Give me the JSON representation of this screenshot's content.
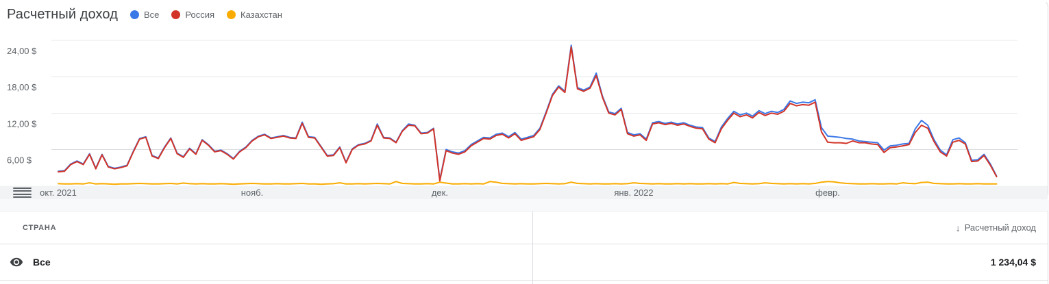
{
  "chart_data": {
    "type": "line",
    "title": "Расчетный доход",
    "unit": "$",
    "ylim": [
      0,
      24
    ],
    "grid": true,
    "legend_position": "top",
    "y_ticks": [
      {
        "label": "24,00 $",
        "value": 24
      },
      {
        "label": "18,00 $",
        "value": 18
      },
      {
        "label": "12,00 $",
        "value": 12
      },
      {
        "label": "6,00 $",
        "value": 6
      }
    ],
    "x_ticks": [
      {
        "label": "окт. 2021",
        "day": 0
      },
      {
        "label": "нояб.",
        "day": 31
      },
      {
        "label": "дек.",
        "day": 61
      },
      {
        "label": "янв. 2022",
        "day": 92
      },
      {
        "label": "февр.",
        "day": 123
      }
    ],
    "draw_order": [
      2,
      0,
      1
    ],
    "series": [
      {
        "name": "Все",
        "color": "#3b78e7",
        "values": [
          2.4,
          2.5,
          3.6,
          4.1,
          3.6,
          5.3,
          2.9,
          5.2,
          3.2,
          2.9,
          3.1,
          3.4,
          5.7,
          7.8,
          8.1,
          5.0,
          4.6,
          6.4,
          7.9,
          5.4,
          4.8,
          6.2,
          5.3,
          7.6,
          6.8,
          5.7,
          5.9,
          5.3,
          4.5,
          5.7,
          6.4,
          7.5,
          8.2,
          8.5,
          7.9,
          8.1,
          8.3,
          8.0,
          7.9,
          10.5,
          8.1,
          8.0,
          6.5,
          5.0,
          5.1,
          6.4,
          3.9,
          6.1,
          6.8,
          7.0,
          7.5,
          10.2,
          8.0,
          7.9,
          7.2,
          9.1,
          10.2,
          10.0,
          8.7,
          8.8,
          9.5,
          1.0,
          6.0,
          5.6,
          5.4,
          5.8,
          6.8,
          7.4,
          8.0,
          7.9,
          8.5,
          8.7,
          8.1,
          8.8,
          7.7,
          8.0,
          8.3,
          9.5,
          12.2,
          15.1,
          16.5,
          15.6,
          23.2,
          16.2,
          15.8,
          16.3,
          18.6,
          14.8,
          12.2,
          11.9,
          12.8,
          8.8,
          8.4,
          8.6,
          7.7,
          10.4,
          10.6,
          10.3,
          10.5,
          10.2,
          10.4,
          10.0,
          9.7,
          9.6,
          7.9,
          7.3,
          9.7,
          11.1,
          12.3,
          11.7,
          12.0,
          11.5,
          12.4,
          11.9,
          12.3,
          12.1,
          12.6,
          14.0,
          13.6,
          13.8,
          13.7,
          14.2,
          9.6,
          8.2,
          8.1,
          8.0,
          7.8,
          7.7,
          7.4,
          7.3,
          7.2,
          7.1,
          5.9,
          6.6,
          6.7,
          6.9,
          7.0,
          9.4,
          10.8,
          10.0,
          7.6,
          5.9,
          5.1,
          7.6,
          7.9,
          7.1,
          4.2,
          4.3,
          5.2,
          3.6,
          1.6
        ]
      },
      {
        "name": "Россия",
        "color": "#d33428",
        "values": [
          2.3,
          2.4,
          3.5,
          4.0,
          3.5,
          5.2,
          2.8,
          5.1,
          3.1,
          2.8,
          3.0,
          3.3,
          5.6,
          7.7,
          8.0,
          4.9,
          4.5,
          6.3,
          7.8,
          5.3,
          4.7,
          6.1,
          5.2,
          7.5,
          6.7,
          5.6,
          5.8,
          5.2,
          4.4,
          5.6,
          6.3,
          7.4,
          8.1,
          8.4,
          7.8,
          8.0,
          8.2,
          7.9,
          7.8,
          10.3,
          8.0,
          7.9,
          6.4,
          4.9,
          5.0,
          6.3,
          3.8,
          6.0,
          6.7,
          6.9,
          7.4,
          10.0,
          7.9,
          7.8,
          7.1,
          9.0,
          10.0,
          9.9,
          8.6,
          8.7,
          9.4,
          0.8,
          5.8,
          5.4,
          5.2,
          5.6,
          6.6,
          7.2,
          7.8,
          7.7,
          8.3,
          8.5,
          7.9,
          8.6,
          7.5,
          7.8,
          8.1,
          9.3,
          12.0,
          14.9,
          16.3,
          15.4,
          22.9,
          16.0,
          15.6,
          16.1,
          18.2,
          14.6,
          12.0,
          11.7,
          12.6,
          8.6,
          8.2,
          8.4,
          7.5,
          10.2,
          10.4,
          10.1,
          10.3,
          10.0,
          10.2,
          9.8,
          9.5,
          9.4,
          7.7,
          7.1,
          9.4,
          10.8,
          12.0,
          11.4,
          11.7,
          11.2,
          12.1,
          11.6,
          12.0,
          11.8,
          12.3,
          13.6,
          13.2,
          13.4,
          13.3,
          13.8,
          8.9,
          7.2,
          7.1,
          7.1,
          7.0,
          7.4,
          7.1,
          7.1,
          6.9,
          6.8,
          5.5,
          6.3,
          6.4,
          6.6,
          6.8,
          8.8,
          10.0,
          9.5,
          7.3,
          5.6,
          4.9,
          7.2,
          7.5,
          6.9,
          4.0,
          4.1,
          5.0,
          3.4,
          1.5
        ]
      },
      {
        "name": "Казахстан",
        "color": "#f9ab00",
        "values": [
          0.35,
          0.3,
          0.3,
          0.35,
          0.3,
          0.5,
          0.3,
          0.35,
          0.3,
          0.25,
          0.3,
          0.3,
          0.35,
          0.4,
          0.35,
          0.3,
          0.3,
          0.35,
          0.4,
          0.3,
          0.45,
          0.35,
          0.3,
          0.35,
          0.3,
          0.3,
          0.35,
          0.3,
          0.25,
          0.3,
          0.35,
          0.4,
          0.35,
          0.3,
          0.3,
          0.35,
          0.3,
          0.3,
          0.35,
          0.4,
          0.3,
          0.3,
          0.25,
          0.3,
          0.35,
          0.5,
          0.3,
          0.3,
          0.35,
          0.3,
          0.35,
          0.4,
          0.35,
          0.3,
          0.7,
          0.4,
          0.35,
          0.3,
          0.3,
          0.35,
          0.3,
          0.6,
          0.45,
          0.3,
          0.3,
          0.35,
          0.3,
          0.35,
          0.3,
          0.7,
          0.6,
          0.4,
          0.35,
          0.3,
          0.35,
          0.3,
          0.3,
          0.35,
          0.4,
          0.35,
          0.3,
          0.35,
          0.6,
          0.4,
          0.35,
          0.3,
          0.35,
          0.3,
          0.3,
          0.35,
          0.3,
          0.35,
          0.5,
          0.4,
          0.35,
          0.3,
          0.35,
          0.3,
          0.3,
          0.35,
          0.3,
          0.35,
          0.3,
          0.3,
          0.35,
          0.3,
          0.35,
          0.3,
          0.55,
          0.4,
          0.35,
          0.3,
          0.35,
          0.5,
          0.4,
          0.35,
          0.3,
          0.35,
          0.3,
          0.35,
          0.3,
          0.4,
          0.6,
          0.7,
          0.65,
          0.5,
          0.4,
          0.35,
          0.3,
          0.3,
          0.35,
          0.3,
          0.3,
          0.35,
          0.3,
          0.5,
          0.4,
          0.35,
          0.55,
          0.6,
          0.4,
          0.35,
          0.3,
          0.3,
          0.35,
          0.3,
          0.3,
          0.35,
          0.3,
          0.3,
          0.3
        ]
      }
    ]
  },
  "table": {
    "country_header": "СТРАНА",
    "sort_icon": "↓",
    "revenue_header": "Расчетный доход",
    "rows": [
      {
        "country": "Все",
        "revenue": "1 234,04 $"
      }
    ]
  },
  "icons": {
    "chart_table_toggle": "menu-lines-icon",
    "row_visibility": "eye-icon",
    "sort_direction": "arrow-down-icon"
  }
}
